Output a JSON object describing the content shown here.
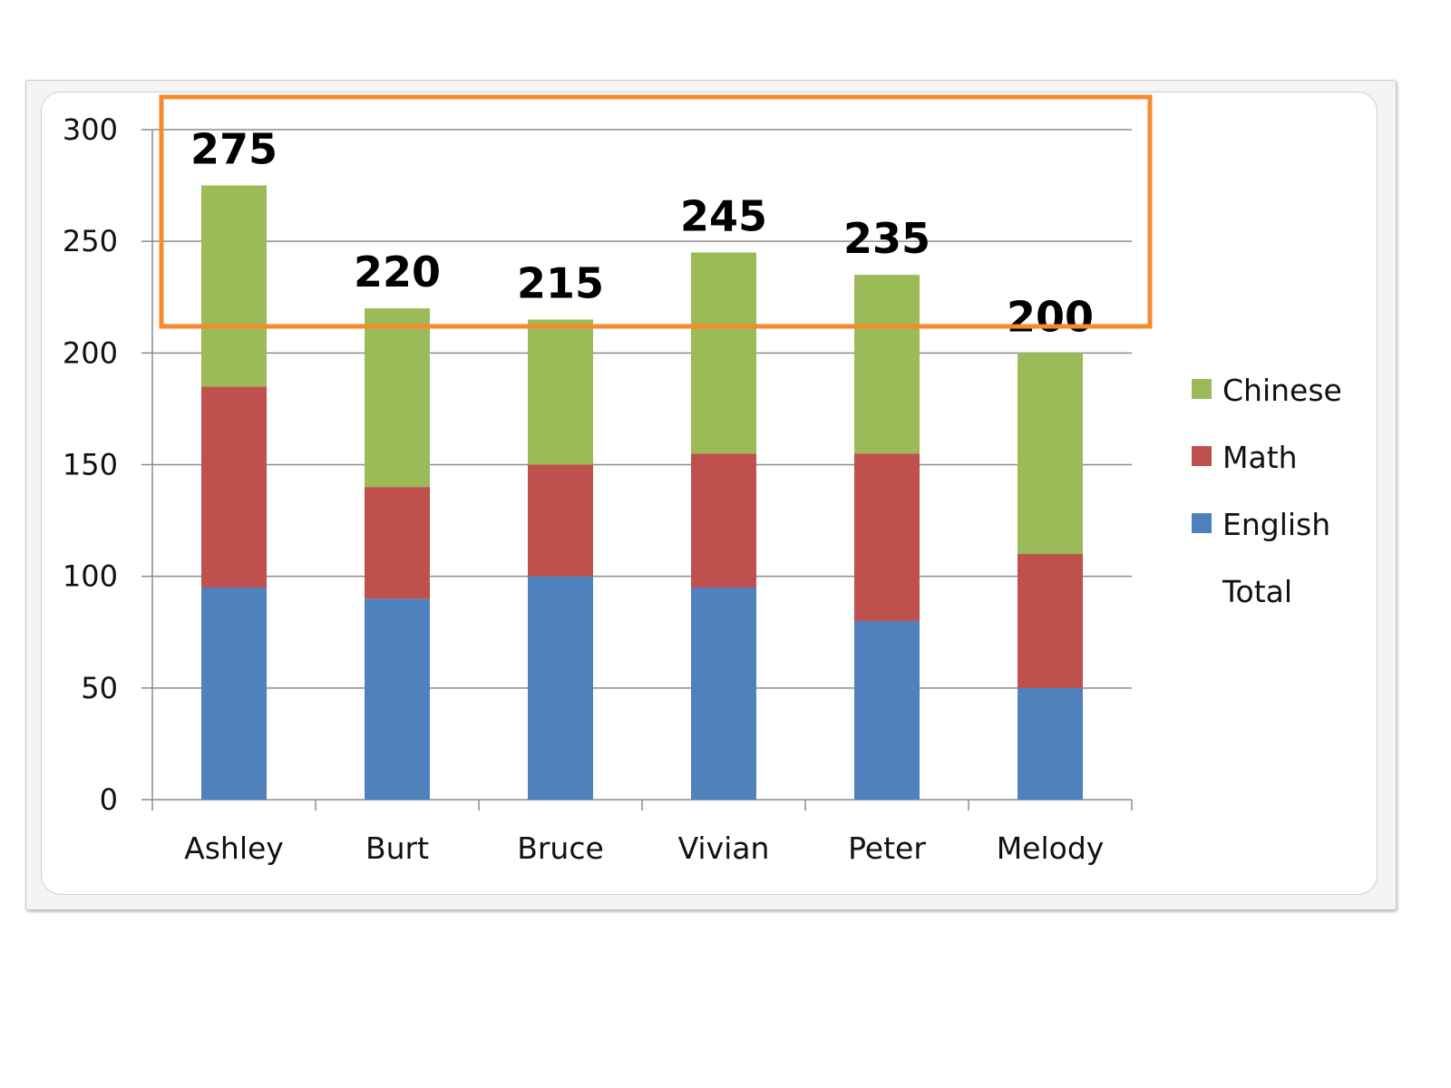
{
  "colors": {
    "English": "#4f81bd",
    "Math": "#c0504d",
    "Chinese": "#9bbb59",
    "highlight_box": "#f58a2e",
    "gridline": "#8c8c8c"
  },
  "chart_data": {
    "type": "bar",
    "stacked": true,
    "categories": [
      "Ashley",
      "Burt",
      "Bruce",
      "Vivian",
      "Peter",
      "Melody"
    ],
    "series": [
      {
        "name": "English",
        "values": [
          95,
          90,
          100,
          95,
          80,
          50
        ]
      },
      {
        "name": "Math",
        "values": [
          90,
          50,
          50,
          60,
          75,
          60
        ]
      },
      {
        "name": "Chinese",
        "values": [
          90,
          80,
          65,
          90,
          80,
          90
        ]
      },
      {
        "name": "Total",
        "values": [
          275,
          220,
          215,
          245,
          235,
          200
        ]
      }
    ],
    "total_labels": [
      "275",
      "220",
      "215",
      "245",
      "235",
      "200"
    ],
    "y_ticks": [
      "0",
      "50",
      "100",
      "150",
      "200",
      "250",
      "300"
    ],
    "ylim": [
      0,
      300
    ],
    "grid": true,
    "legend_position": "right",
    "legend": [
      "Chinese",
      "Math",
      "English",
      "Total"
    ],
    "annotation": "orange rectangle highlighting the total labels"
  }
}
